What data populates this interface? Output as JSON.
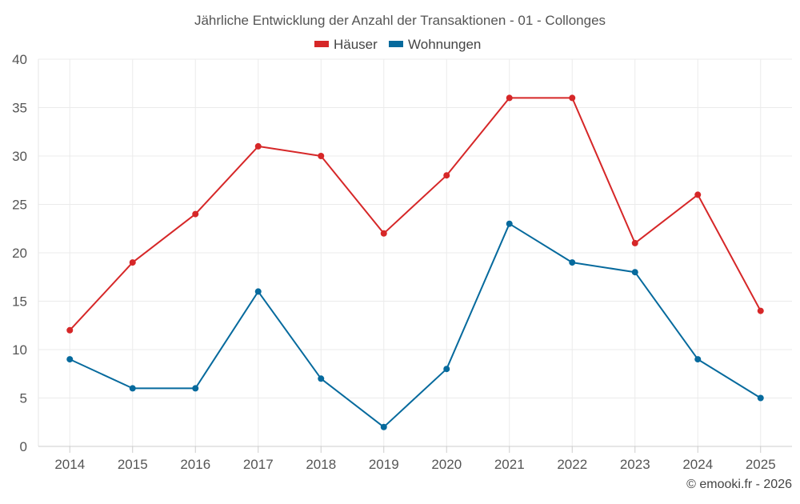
{
  "chart_data": {
    "type": "line",
    "title": "Jährliche Entwicklung der Anzahl der Transaktionen - 01 - Collonges",
    "categories": [
      "2014",
      "2015",
      "2016",
      "2017",
      "2018",
      "2019",
      "2020",
      "2021",
      "2022",
      "2023",
      "2024",
      "2025"
    ],
    "series": [
      {
        "name": "Häuser",
        "color": "#d62728",
        "values": [
          12,
          19,
          24,
          31,
          30,
          22,
          28,
          36,
          36,
          21,
          26,
          14
        ]
      },
      {
        "name": "Wohnungen",
        "color": "#066a9d",
        "values": [
          9,
          6,
          6,
          16,
          7,
          2,
          8,
          23,
          19,
          18,
          9,
          5
        ]
      }
    ],
    "ylim": [
      0,
      40
    ],
    "yticks": [
      "0",
      "5",
      "10",
      "15",
      "20",
      "25",
      "30",
      "35",
      "40"
    ],
    "xlabel": "",
    "ylabel": "",
    "grid": true,
    "legend_position": "top-center"
  },
  "credit": "© emooki.fr - 2026"
}
